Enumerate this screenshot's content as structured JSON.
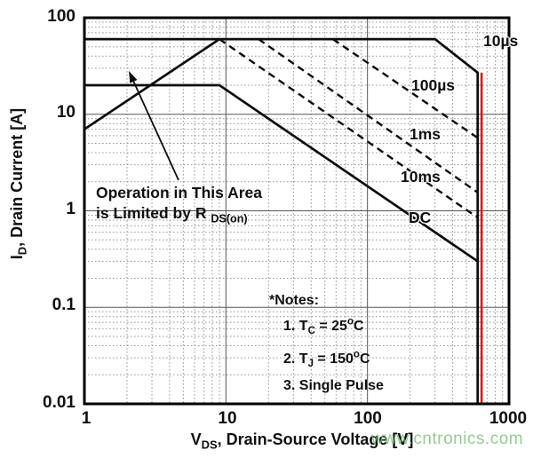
{
  "watermark": {
    "text": "www.cntronics.com",
    "color": "#7abf7a"
  },
  "annotation": {
    "line1": "Operation in This Area",
    "line2_pre": "is Limited by R",
    "line2_sub": "DS(on)"
  },
  "notes": {
    "heading": "*Notes:",
    "note1_idx": "1. ",
    "note1_base": "T",
    "note1_sub": "C",
    "note1_eq": " = 25",
    "note1_sup": "o",
    "note1_unit": "C",
    "note2_idx": "2. ",
    "note2_base": "T",
    "note2_sub": "J",
    "note2_eq": " = 150",
    "note2_sup": "o",
    "note2_unit": "C",
    "note3": "3. Single Pulse"
  },
  "chart_data": {
    "type": "line",
    "x_axis": {
      "label_pre": "V",
      "label_sub": "DS",
      "label_post": ", Drain-Source Voltage [V]",
      "scale": "log",
      "min": 1,
      "max": 1000,
      "ticks": [
        1,
        10,
        100,
        1000
      ],
      "tick_labels": [
        "1",
        "10",
        "100",
        "1000"
      ]
    },
    "y_axis": {
      "label_pre": "I",
      "label_sub": "D",
      "label_post": ", Drain Current [A]",
      "scale": "log",
      "min": 0.01,
      "max": 100,
      "ticks": [
        100,
        10,
        1,
        0.1,
        0.01
      ],
      "tick_labels": [
        "100",
        "10",
        "1",
        "0.1",
        "0.01"
      ]
    },
    "grid": {
      "minor_style": "dotted",
      "major_style": "solid",
      "minor_color": "#999999",
      "major_color": "#555555"
    },
    "line_color": "#0d0d0d",
    "series": [
      {
        "name": "rdson-limit",
        "label": "",
        "style": "solid",
        "points": [
          [
            1,
            7
          ],
          [
            9,
            60
          ]
        ]
      },
      {
        "name": "10us",
        "label": "10µs",
        "style": "solid",
        "points": [
          [
            1,
            60
          ],
          [
            300,
            60
          ],
          [
            600,
            27
          ],
          [
            600,
            0.01
          ]
        ]
      },
      {
        "name": "100us",
        "label": "100µs",
        "style": "dashed",
        "points": [
          [
            57,
            60
          ],
          [
            600,
            5.7
          ]
        ]
      },
      {
        "name": "1ms",
        "label": "1ms",
        "style": "dashed",
        "points": [
          [
            17,
            60
          ],
          [
            600,
            1.55
          ]
        ]
      },
      {
        "name": "10ms",
        "label": "10ms",
        "style": "dashed",
        "points": [
          [
            9,
            60
          ],
          [
            600,
            0.85
          ]
        ]
      },
      {
        "name": "dc",
        "label": "DC",
        "style": "solid",
        "points": [
          [
            1,
            20
          ],
          [
            9,
            20
          ],
          [
            600,
            0.3
          ]
        ]
      }
    ],
    "red_marker": {
      "color": "#e01212",
      "v": 640,
      "i_top": 27,
      "i_bottom": 0.01
    }
  }
}
